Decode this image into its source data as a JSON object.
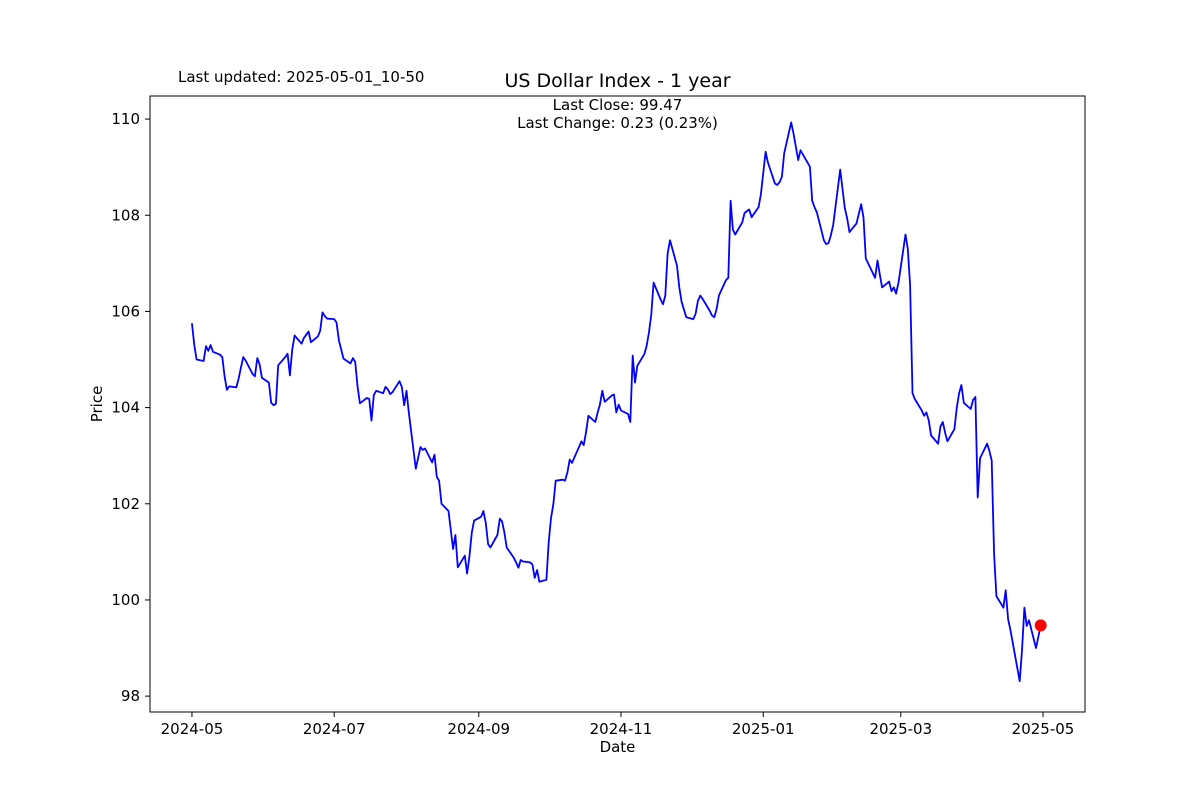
{
  "figure": {
    "title": "US Dollar Index - 1 year",
    "last_updated_label": "Last updated: 2025-05-01_10-50",
    "annotation_line1": "Last Close: 99.47",
    "annotation_line2": "Last Change: 0.23 (0.23%)",
    "xlabel": "Date",
    "ylabel": "Price"
  },
  "chart_data": {
    "type": "line",
    "title": "US Dollar Index - 1 year",
    "xlabel": "Date",
    "ylabel": "Price",
    "legend": "none",
    "grid": false,
    "line_color": "#0000ff",
    "marker_color": "#ff0000",
    "last_close": 99.47,
    "last_change": 0.23,
    "last_change_pct": "0.23%",
    "ylim": [
      97.67,
      110.48
    ],
    "y_ticks": [
      98,
      100,
      102,
      104,
      106,
      108,
      110
    ],
    "xlim": [
      "2024-04-13",
      "2025-05-19"
    ],
    "x_ticks": [
      {
        "date": "2024-05-01",
        "label": "2024-05"
      },
      {
        "date": "2024-07-01",
        "label": "2024-07"
      },
      {
        "date": "2024-09-01",
        "label": "2024-09"
      },
      {
        "date": "2024-11-01",
        "label": "2024-11"
      },
      {
        "date": "2025-01-01",
        "label": "2025-01"
      },
      {
        "date": "2025-03-01",
        "label": "2025-03"
      },
      {
        "date": "2025-05-01",
        "label": "2025-05"
      }
    ],
    "series": [
      {
        "name": "US Dollar Index",
        "points": [
          [
            "2024-05-01",
            105.74
          ],
          [
            "2024-05-02",
            105.3
          ],
          [
            "2024-05-03",
            105.0
          ],
          [
            "2024-05-06",
            104.97
          ],
          [
            "2024-05-07",
            105.28
          ],
          [
            "2024-05-08",
            105.18
          ],
          [
            "2024-05-09",
            105.3
          ],
          [
            "2024-05-10",
            105.16
          ],
          [
            "2024-05-13",
            105.1
          ],
          [
            "2024-05-14",
            105.05
          ],
          [
            "2024-05-15",
            104.65
          ],
          [
            "2024-05-16",
            104.37
          ],
          [
            "2024-05-17",
            104.44
          ],
          [
            "2024-05-20",
            104.42
          ],
          [
            "2024-05-21",
            104.6
          ],
          [
            "2024-05-22",
            104.83
          ],
          [
            "2024-05-23",
            105.05
          ],
          [
            "2024-05-24",
            104.98
          ],
          [
            "2024-05-27",
            104.7
          ],
          [
            "2024-05-28",
            104.65
          ],
          [
            "2024-05-29",
            105.03
          ],
          [
            "2024-05-30",
            104.9
          ],
          [
            "2024-05-31",
            104.62
          ],
          [
            "2024-06-03",
            104.52
          ],
          [
            "2024-06-04",
            104.1
          ],
          [
            "2024-06-05",
            104.05
          ],
          [
            "2024-06-06",
            104.08
          ],
          [
            "2024-06-07",
            104.88
          ],
          [
            "2024-06-10",
            105.05
          ],
          [
            "2024-06-11",
            105.12
          ],
          [
            "2024-06-12",
            104.67
          ],
          [
            "2024-06-13",
            105.2
          ],
          [
            "2024-06-14",
            105.5
          ],
          [
            "2024-06-17",
            105.33
          ],
          [
            "2024-06-18",
            105.45
          ],
          [
            "2024-06-20",
            105.58
          ],
          [
            "2024-06-21",
            105.36
          ],
          [
            "2024-06-24",
            105.48
          ],
          [
            "2024-06-25",
            105.6
          ],
          [
            "2024-06-26",
            105.98
          ],
          [
            "2024-06-27",
            105.9
          ],
          [
            "2024-06-28",
            105.85
          ],
          [
            "2024-07-01",
            105.84
          ],
          [
            "2024-07-02",
            105.77
          ],
          [
            "2024-07-03",
            105.4
          ],
          [
            "2024-07-05",
            105.02
          ],
          [
            "2024-07-08",
            104.92
          ],
          [
            "2024-07-09",
            105.03
          ],
          [
            "2024-07-10",
            104.95
          ],
          [
            "2024-07-11",
            104.45
          ],
          [
            "2024-07-12",
            104.09
          ],
          [
            "2024-07-15",
            104.2
          ],
          [
            "2024-07-16",
            104.18
          ],
          [
            "2024-07-17",
            103.73
          ],
          [
            "2024-07-18",
            104.26
          ],
          [
            "2024-07-19",
            104.35
          ],
          [
            "2024-07-22",
            104.3
          ],
          [
            "2024-07-23",
            104.43
          ],
          [
            "2024-07-24",
            104.38
          ],
          [
            "2024-07-25",
            104.28
          ],
          [
            "2024-07-26",
            104.32
          ],
          [
            "2024-07-29",
            104.55
          ],
          [
            "2024-07-30",
            104.43
          ],
          [
            "2024-07-31",
            104.05
          ],
          [
            "2024-08-01",
            104.35
          ],
          [
            "2024-08-02",
            103.9
          ],
          [
            "2024-08-05",
            102.73
          ],
          [
            "2024-08-06",
            102.95
          ],
          [
            "2024-08-07",
            103.18
          ],
          [
            "2024-08-08",
            103.12
          ],
          [
            "2024-08-09",
            103.15
          ],
          [
            "2024-08-12",
            102.86
          ],
          [
            "2024-08-13",
            103.02
          ],
          [
            "2024-08-14",
            102.56
          ],
          [
            "2024-08-15",
            102.48
          ],
          [
            "2024-08-16",
            102.0
          ],
          [
            "2024-08-19",
            101.85
          ],
          [
            "2024-08-20",
            101.45
          ],
          [
            "2024-08-21",
            101.06
          ],
          [
            "2024-08-22",
            101.35
          ],
          [
            "2024-08-23",
            100.68
          ],
          [
            "2024-08-26",
            100.92
          ],
          [
            "2024-08-27",
            100.55
          ],
          [
            "2024-08-28",
            100.9
          ],
          [
            "2024-08-29",
            101.4
          ],
          [
            "2024-08-30",
            101.65
          ],
          [
            "2024-09-02",
            101.73
          ],
          [
            "2024-09-03",
            101.85
          ],
          [
            "2024-09-04",
            101.6
          ],
          [
            "2024-09-05",
            101.16
          ],
          [
            "2024-09-06",
            101.09
          ],
          [
            "2024-09-09",
            101.35
          ],
          [
            "2024-09-10",
            101.69
          ],
          [
            "2024-09-11",
            101.63
          ],
          [
            "2024-09-12",
            101.4
          ],
          [
            "2024-09-13",
            101.09
          ],
          [
            "2024-09-16",
            100.88
          ],
          [
            "2024-09-17",
            100.78
          ],
          [
            "2024-09-18",
            100.67
          ],
          [
            "2024-09-19",
            100.83
          ],
          [
            "2024-09-20",
            100.8
          ],
          [
            "2024-09-23",
            100.78
          ],
          [
            "2024-09-24",
            100.74
          ],
          [
            "2024-09-25",
            100.46
          ],
          [
            "2024-09-26",
            100.62
          ],
          [
            "2024-09-27",
            100.38
          ],
          [
            "2024-09-30",
            100.42
          ],
          [
            "2024-10-01",
            101.2
          ],
          [
            "2024-10-02",
            101.7
          ],
          [
            "2024-10-03",
            102.0
          ],
          [
            "2024-10-04",
            102.48
          ],
          [
            "2024-10-07",
            102.5
          ],
          [
            "2024-10-08",
            102.48
          ],
          [
            "2024-10-09",
            102.65
          ],
          [
            "2024-10-10",
            102.92
          ],
          [
            "2024-10-11",
            102.85
          ],
          [
            "2024-10-14",
            103.18
          ],
          [
            "2024-10-15",
            103.3
          ],
          [
            "2024-10-16",
            103.22
          ],
          [
            "2024-10-17",
            103.48
          ],
          [
            "2024-10-18",
            103.83
          ],
          [
            "2024-10-21",
            103.7
          ],
          [
            "2024-10-22",
            103.9
          ],
          [
            "2024-10-23",
            104.07
          ],
          [
            "2024-10-24",
            104.35
          ],
          [
            "2024-10-25",
            104.12
          ],
          [
            "2024-10-28",
            104.25
          ],
          [
            "2024-10-29",
            104.27
          ],
          [
            "2024-10-30",
            103.9
          ],
          [
            "2024-10-31",
            104.06
          ],
          [
            "2024-11-01",
            103.94
          ],
          [
            "2024-11-04",
            103.87
          ],
          [
            "2024-11-05",
            103.7
          ],
          [
            "2024-11-06",
            105.08
          ],
          [
            "2024-11-07",
            104.52
          ],
          [
            "2024-11-08",
            104.87
          ],
          [
            "2024-11-11",
            105.11
          ],
          [
            "2024-11-12",
            105.28
          ],
          [
            "2024-11-13",
            105.57
          ],
          [
            "2024-11-14",
            105.94
          ],
          [
            "2024-11-15",
            106.6
          ],
          [
            "2024-11-18",
            106.25
          ],
          [
            "2024-11-19",
            106.15
          ],
          [
            "2024-11-20",
            106.33
          ],
          [
            "2024-11-21",
            107.2
          ],
          [
            "2024-11-22",
            107.48
          ],
          [
            "2024-11-25",
            106.95
          ],
          [
            "2024-11-26",
            106.5
          ],
          [
            "2024-11-27",
            106.2
          ],
          [
            "2024-11-29",
            105.88
          ],
          [
            "2024-12-02",
            105.84
          ],
          [
            "2024-12-03",
            105.95
          ],
          [
            "2024-12-04",
            106.22
          ],
          [
            "2024-12-05",
            106.33
          ],
          [
            "2024-12-06",
            106.26
          ],
          [
            "2024-12-09",
            106.02
          ],
          [
            "2024-12-10",
            105.92
          ],
          [
            "2024-12-11",
            105.88
          ],
          [
            "2024-12-12",
            106.05
          ],
          [
            "2024-12-13",
            106.33
          ],
          [
            "2024-12-16",
            106.65
          ],
          [
            "2024-12-17",
            106.7
          ],
          [
            "2024-12-18",
            108.3
          ],
          [
            "2024-12-19",
            107.7
          ],
          [
            "2024-12-20",
            107.6
          ],
          [
            "2024-12-23",
            107.85
          ],
          [
            "2024-12-24",
            108.05
          ],
          [
            "2024-12-26",
            108.12
          ],
          [
            "2024-12-27",
            107.96
          ],
          [
            "2024-12-30",
            108.17
          ],
          [
            "2024-12-31",
            108.44
          ],
          [
            "2025-01-02",
            109.32
          ],
          [
            "2025-01-03",
            109.1
          ],
          [
            "2025-01-06",
            108.66
          ],
          [
            "2025-01-07",
            108.63
          ],
          [
            "2025-01-08",
            108.69
          ],
          [
            "2025-01-09",
            108.8
          ],
          [
            "2025-01-10",
            109.29
          ],
          [
            "2025-01-13",
            109.93
          ],
          [
            "2025-01-14",
            109.7
          ],
          [
            "2025-01-15",
            109.42
          ],
          [
            "2025-01-16",
            109.15
          ],
          [
            "2025-01-17",
            109.35
          ],
          [
            "2025-01-21",
            109.01
          ],
          [
            "2025-01-22",
            108.3
          ],
          [
            "2025-01-23",
            108.17
          ],
          [
            "2025-01-24",
            108.06
          ],
          [
            "2025-01-27",
            107.48
          ],
          [
            "2025-01-28",
            107.4
          ],
          [
            "2025-01-29",
            107.42
          ],
          [
            "2025-01-30",
            107.58
          ],
          [
            "2025-01-31",
            107.8
          ],
          [
            "2025-02-03",
            108.95
          ],
          [
            "2025-02-04",
            108.55
          ],
          [
            "2025-02-05",
            108.15
          ],
          [
            "2025-02-06",
            107.93
          ],
          [
            "2025-02-07",
            107.65
          ],
          [
            "2025-02-10",
            107.83
          ],
          [
            "2025-02-11",
            108.03
          ],
          [
            "2025-02-12",
            108.23
          ],
          [
            "2025-02-13",
            107.95
          ],
          [
            "2025-02-14",
            107.1
          ],
          [
            "2025-02-18",
            106.7
          ],
          [
            "2025-02-19",
            107.06
          ],
          [
            "2025-02-20",
            106.77
          ],
          [
            "2025-02-21",
            106.5
          ],
          [
            "2025-02-24",
            106.62
          ],
          [
            "2025-02-25",
            106.42
          ],
          [
            "2025-02-26",
            106.5
          ],
          [
            "2025-02-27",
            106.37
          ],
          [
            "2025-02-28",
            106.6
          ],
          [
            "2025-03-03",
            107.6
          ],
          [
            "2025-03-04",
            107.3
          ],
          [
            "2025-03-05",
            106.55
          ],
          [
            "2025-03-06",
            104.3
          ],
          [
            "2025-03-07",
            104.18
          ],
          [
            "2025-03-10",
            103.94
          ],
          [
            "2025-03-11",
            103.83
          ],
          [
            "2025-03-12",
            103.9
          ],
          [
            "2025-03-13",
            103.73
          ],
          [
            "2025-03-14",
            103.42
          ],
          [
            "2025-03-17",
            103.25
          ],
          [
            "2025-03-18",
            103.6
          ],
          [
            "2025-03-19",
            103.7
          ],
          [
            "2025-03-20",
            103.48
          ],
          [
            "2025-03-21",
            103.3
          ],
          [
            "2025-03-24",
            103.55
          ],
          [
            "2025-03-25",
            104.0
          ],
          [
            "2025-03-26",
            104.3
          ],
          [
            "2025-03-27",
            104.47
          ],
          [
            "2025-03-28",
            104.1
          ],
          [
            "2025-03-31",
            103.97
          ],
          [
            "2025-04-01",
            104.16
          ],
          [
            "2025-04-02",
            104.22
          ],
          [
            "2025-04-03",
            102.13
          ],
          [
            "2025-04-04",
            102.95
          ],
          [
            "2025-04-07",
            103.25
          ],
          [
            "2025-04-08",
            103.1
          ],
          [
            "2025-04-09",
            102.9
          ],
          [
            "2025-04-10",
            100.95
          ],
          [
            "2025-04-11",
            100.08
          ],
          [
            "2025-04-14",
            99.84
          ],
          [
            "2025-04-15",
            100.2
          ],
          [
            "2025-04-16",
            99.6
          ],
          [
            "2025-04-17",
            99.38
          ],
          [
            "2025-04-21",
            98.31
          ],
          [
            "2025-04-22",
            98.95
          ],
          [
            "2025-04-23",
            99.84
          ],
          [
            "2025-04-24",
            99.46
          ],
          [
            "2025-04-25",
            99.58
          ],
          [
            "2025-04-28",
            99.0
          ],
          [
            "2025-04-29",
            99.24
          ],
          [
            "2025-04-30",
            99.47
          ]
        ]
      }
    ]
  }
}
